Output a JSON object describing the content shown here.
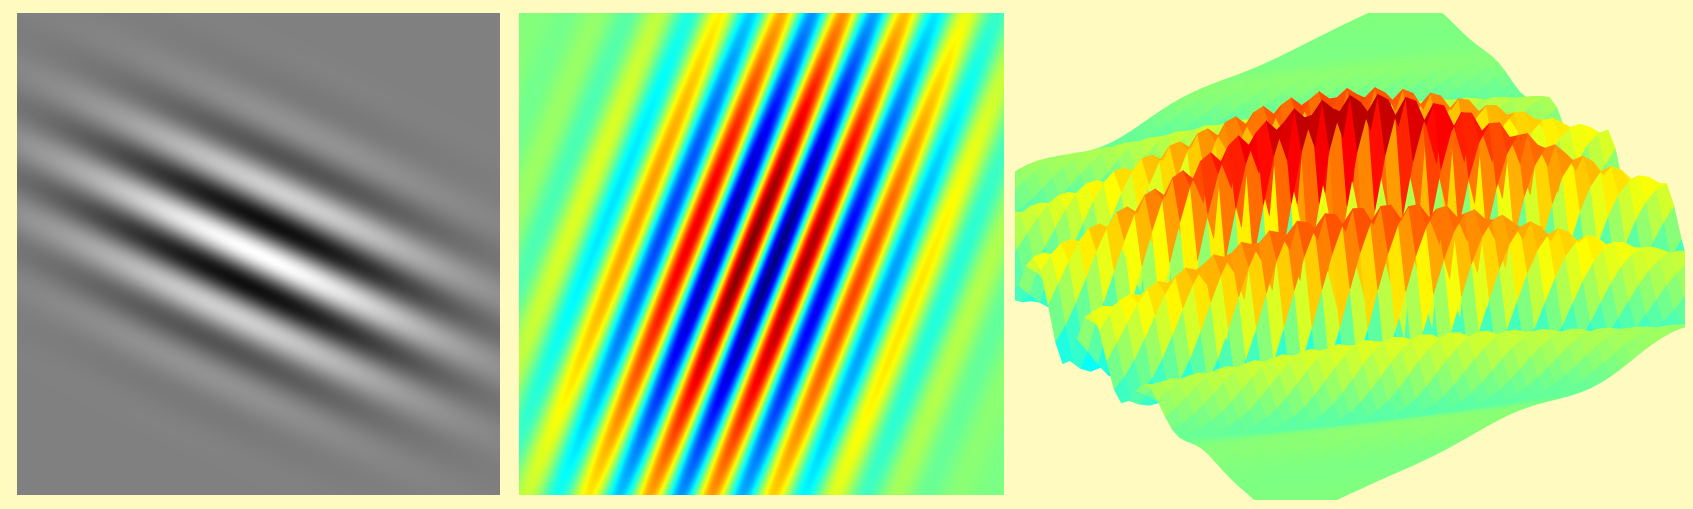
{
  "page": {
    "background": "#fffbc0"
  },
  "panels": [
    {
      "id": "grayscale-gabor",
      "kind": "2D image",
      "colormap": "gray"
    },
    {
      "id": "colormap-gabor",
      "kind": "2D image",
      "colormap": "jet"
    },
    {
      "id": "surface-gabor",
      "kind": "3D surface",
      "colormap": "jet"
    }
  ]
}
